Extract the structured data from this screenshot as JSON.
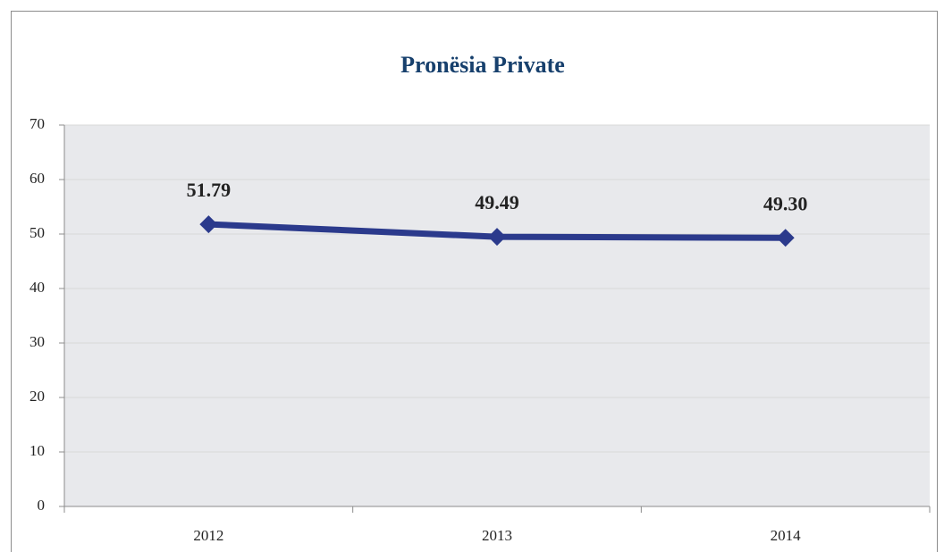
{
  "chart_data": {
    "type": "line",
    "title": "Pronësia Private",
    "categories": [
      "2012",
      "2013",
      "2014"
    ],
    "series": [
      {
        "name": "Pronësia Private",
        "color": "#2b3a8c",
        "values": [
          51.79,
          49.49,
          49.3
        ],
        "value_labels": [
          "51.79",
          "49.49",
          "49.30"
        ]
      }
    ],
    "ylim": [
      0,
      70
    ],
    "yticks": [
      0,
      10,
      20,
      30,
      40,
      50,
      60,
      70
    ],
    "grid": true
  }
}
